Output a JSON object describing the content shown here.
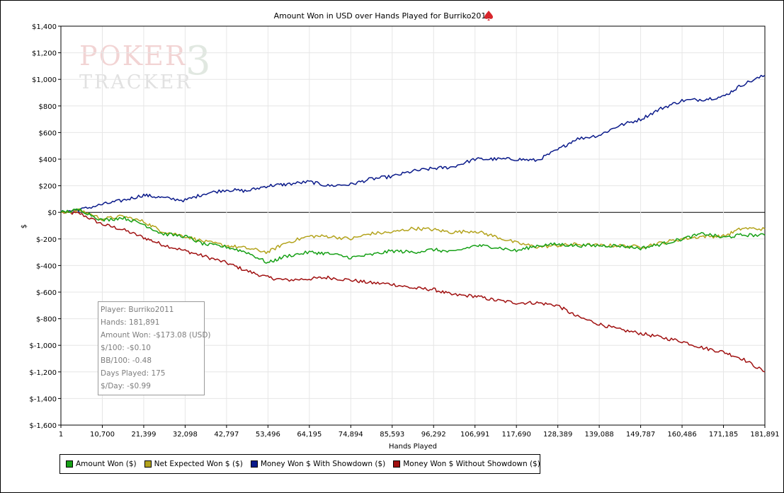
{
  "chart_data": {
    "type": "line",
    "title": "Amount Won in USD over Hands Played for Burriko2011",
    "xlabel": "Hands Played",
    "ylabel": "$",
    "xlim": [
      1,
      181891
    ],
    "ylim": [
      -1600,
      1400
    ],
    "x_ticks": [
      "1",
      "10,700",
      "21,399",
      "32,098",
      "42,797",
      "53,496",
      "64,195",
      "74,894",
      "85,593",
      "96,292",
      "106,991",
      "117,690",
      "128,389",
      "139,088",
      "149,787",
      "160,486",
      "171,185",
      "181,891"
    ],
    "y_ticks": [
      "$1,400",
      "$1,200",
      "$1,000",
      "$800",
      "$600",
      "$400",
      "$200",
      "$0",
      "$-200",
      "$-400",
      "$-600",
      "$-800",
      "$-1,000",
      "$-1,200",
      "$-1,400",
      "$-1,600"
    ],
    "grid": true,
    "legend_position": "bottom",
    "x": [
      1,
      5000,
      10700,
      16000,
      21399,
      26000,
      32098,
      37000,
      42797,
      48000,
      53496,
      58000,
      64195,
      69000,
      74894,
      80000,
      85593,
      91000,
      96292,
      101000,
      106991,
      112000,
      117690,
      123000,
      128389,
      133000,
      139088,
      144000,
      149787,
      155000,
      160486,
      166000,
      171185,
      176000,
      181891
    ],
    "series": [
      {
        "name": "Amount Won ($)",
        "color": "#16a016",
        "values": [
          0,
          20,
          -60,
          -40,
          -90,
          -160,
          -180,
          -240,
          -260,
          -300,
          -380,
          -330,
          -300,
          -310,
          -340,
          -320,
          -290,
          -300,
          -280,
          -300,
          -250,
          -260,
          -290,
          -250,
          -240,
          -250,
          -250,
          -250,
          -270,
          -240,
          -200,
          -160,
          -190,
          -170,
          -173
        ]
      },
      {
        "name": "Net Expected Won $ ($)",
        "color": "#b3a31c",
        "values": [
          0,
          15,
          -50,
          -30,
          -70,
          -140,
          -180,
          -220,
          -250,
          -270,
          -300,
          -230,
          -180,
          -180,
          -200,
          -160,
          -150,
          -120,
          -130,
          -150,
          -140,
          -180,
          -230,
          -260,
          -250,
          -240,
          -250,
          -250,
          -260,
          -230,
          -200,
          -180,
          -180,
          -120,
          -125
        ]
      },
      {
        "name": "Money Won $ With Showdown ($)",
        "color": "#0a1a8a",
        "values": [
          0,
          20,
          60,
          90,
          130,
          110,
          90,
          140,
          170,
          160,
          200,
          210,
          230,
          200,
          210,
          250,
          270,
          310,
          330,
          340,
          400,
          400,
          400,
          390,
          470,
          550,
          580,
          650,
          700,
          780,
          840,
          850,
          870,
          960,
          1030
        ]
      },
      {
        "name": "Money Won $ Without Showdown ($)",
        "color": "#a01010",
        "values": [
          0,
          -10,
          -90,
          -130,
          -190,
          -240,
          -290,
          -330,
          -380,
          -440,
          -490,
          -510,
          -500,
          -490,
          -510,
          -530,
          -540,
          -570,
          -580,
          -620,
          -630,
          -660,
          -680,
          -680,
          -700,
          -780,
          -840,
          -880,
          -910,
          -940,
          -970,
          -1020,
          -1050,
          -1100,
          -1200
        ]
      }
    ]
  },
  "stats": [
    "Player: Burriko2011",
    "Hands: 181,891",
    "Amount Won: -$173.08 (USD)",
    "$/100: -$0.10",
    "BB/100: -0.48",
    "Days Played: 175",
    "$/Day: -$0.99"
  ],
  "watermark": {
    "line1": "POKER",
    "number": "3",
    "line2": "TRACKER"
  }
}
